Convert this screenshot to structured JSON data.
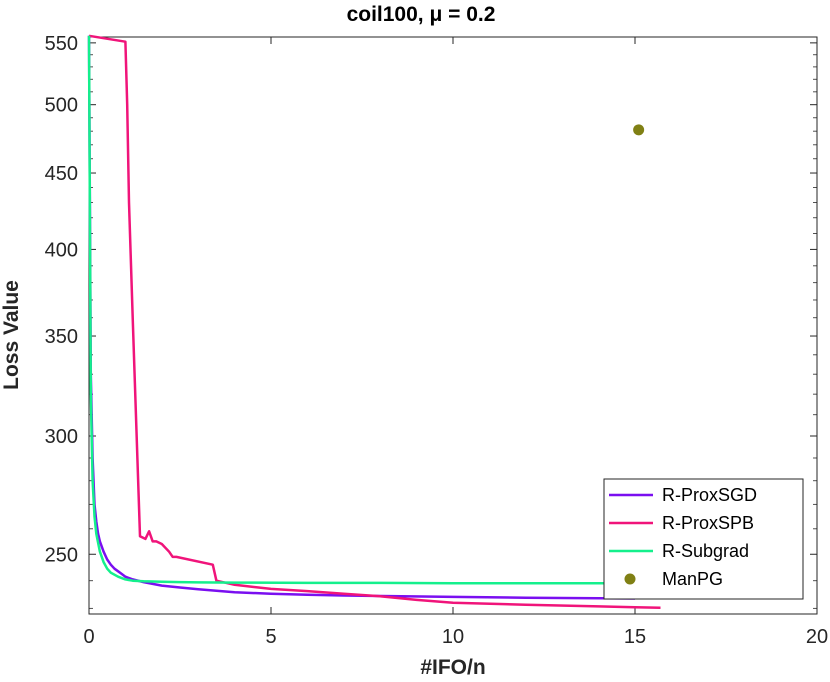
{
  "chart_data": {
    "type": "line",
    "title": "coil100, μ = 0.2",
    "xlabel": "#IFO/n",
    "ylabel": "Loss Value",
    "xlim": [
      0,
      20
    ],
    "ylim": [
      228,
      555
    ],
    "y_scale": "log",
    "xticks": [
      0,
      5,
      10,
      15,
      20
    ],
    "yticks": [
      250,
      300,
      350,
      400,
      450,
      500,
      550
    ],
    "grid": false,
    "legend_position": "bottom-right",
    "series": [
      {
        "name": "R-ProxSGD",
        "color": "#7a0ff0",
        "style": "line",
        "x": [
          0.0,
          0.05,
          0.1,
          0.15,
          0.2,
          0.25,
          0.3,
          0.4,
          0.5,
          0.6,
          0.7,
          0.8,
          0.9,
          1.0,
          1.2,
          1.5,
          2.0,
          2.5,
          3.0,
          3.5,
          4.0,
          5.0,
          6.0,
          7.0,
          8.0,
          10.0,
          12.0,
          15.0
        ],
        "y": [
          556,
          330,
          290,
          270,
          263,
          258,
          255,
          251,
          248,
          246,
          244.5,
          243.5,
          242.5,
          241.5,
          240.5,
          239.5,
          238.2,
          237.5,
          236.9,
          236.3,
          235.8,
          235.2,
          234.9,
          234.6,
          234.4,
          234.1,
          233.8,
          233.5
        ]
      },
      {
        "name": "R-ProxSPB",
        "color": "#f0147a",
        "style": "line",
        "x": [
          0.0,
          1.0,
          1.05,
          1.1,
          1.2,
          1.4,
          1.55,
          1.65,
          1.75,
          1.85,
          2.0,
          2.2,
          2.3,
          2.4,
          3.4,
          3.5,
          4.0,
          5.0,
          6.0,
          7.0,
          8.0,
          9.0,
          10.0,
          12.0,
          14.0,
          15.0,
          15.7
        ],
        "y": [
          556,
          551,
          500,
          430,
          360,
          257,
          256,
          259,
          255,
          255,
          254,
          251,
          249,
          249,
          246,
          240,
          238.5,
          237,
          236.2,
          235.2,
          234.3,
          233,
          232,
          231.3,
          230.7,
          230.4,
          230.2
        ]
      },
      {
        "name": "R-Subgrad",
        "color": "#14f08c",
        "style": "line",
        "x": [
          0.0,
          0.05,
          0.1,
          0.15,
          0.2,
          0.3,
          0.4,
          0.5,
          0.6,
          0.8,
          1.0,
          1.2,
          1.5,
          2.0,
          2.5,
          3.0,
          4.0,
          6.0,
          8.0,
          10.0,
          12.0,
          14.0,
          15.0
        ],
        "y": [
          556,
          320,
          280,
          265,
          258,
          251,
          247,
          244.5,
          243,
          241.5,
          240.5,
          240,
          239.8,
          239.6,
          239.5,
          239.4,
          239.3,
          239.2,
          239.2,
          239.1,
          239.1,
          239.1,
          239.1
        ]
      },
      {
        "name": "ManPG",
        "color": "#808014",
        "style": "marker",
        "x": [
          15.1
        ],
        "y": [
          481
        ]
      }
    ]
  }
}
